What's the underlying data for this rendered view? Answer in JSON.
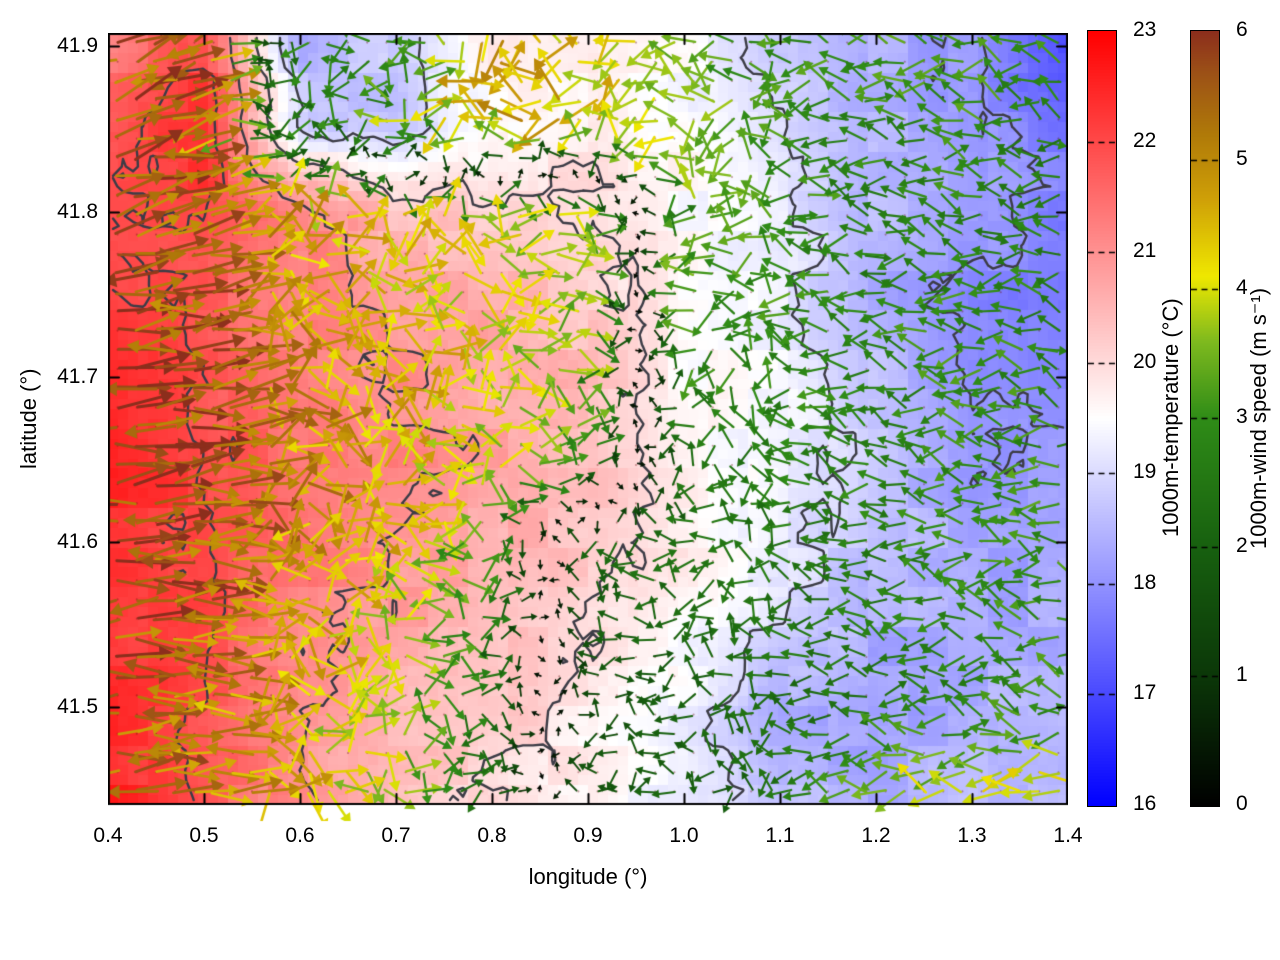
{
  "figure": {
    "background": "#ffffff",
    "frame_color": "#000000"
  },
  "axes": {
    "xlabel": "longitude (°)",
    "ylabel": "latitude (°)",
    "xticks": {
      "values": [
        0.4,
        0.5,
        0.6,
        0.7,
        0.8,
        0.9,
        1.0,
        1.1,
        1.2,
        1.3,
        1.4
      ],
      "labels": [
        "0.4",
        "0.5",
        "0.6",
        "0.7",
        "0.8",
        "0.9",
        "1.0",
        "1.1",
        "1.2",
        "1.3",
        "1.4"
      ]
    },
    "yticks": {
      "values": [
        41.5,
        41.6,
        41.7,
        41.8,
        41.9
      ],
      "labels": [
        "41.5",
        "41.6",
        "41.7",
        "41.8",
        "41.9"
      ]
    }
  },
  "colorbars": {
    "temperature": {
      "title": "1000m-temperature (°C)",
      "min": 16,
      "max": 23,
      "tick_values": [
        16,
        17,
        18,
        19,
        20,
        21,
        22,
        23
      ],
      "tick_labels": [
        "16",
        "17",
        "18",
        "19",
        "20",
        "21",
        "22",
        "23"
      ],
      "stops": [
        [
          16,
          "#0000ff"
        ],
        [
          19.5,
          "#ffffff"
        ],
        [
          23,
          "#ff0000"
        ]
      ]
    },
    "wind": {
      "title": "1000m-wind speed (m s⁻¹)",
      "min": 0,
      "max": 6,
      "tick_values": [
        0,
        1,
        2,
        3,
        4,
        5,
        6
      ],
      "tick_labels": [
        "0",
        "1",
        "2",
        "3",
        "4",
        "5",
        "6"
      ],
      "stops": [
        [
          0,
          "#000000"
        ],
        [
          1,
          "#0b3708"
        ],
        [
          2,
          "#17600f"
        ],
        [
          3,
          "#2f8c17"
        ],
        [
          3.6,
          "#7fba1e"
        ],
        [
          4.1,
          "#efe800"
        ],
        [
          4.7,
          "#cfa007"
        ],
        [
          5.2,
          "#b07a08"
        ],
        [
          5.7,
          "#9b4f17"
        ],
        [
          6,
          "#8c2e1c"
        ]
      ]
    }
  },
  "chart_data": {
    "type": "heatmap",
    "overlays": [
      "contour",
      "quiver"
    ],
    "title": "",
    "xlabel": "longitude (°)",
    "ylabel": "latitude (°)",
    "xlim": [
      0.4,
      1.4
    ],
    "ylim": [
      41.441,
      41.908
    ],
    "grid": false,
    "x_grid_lon": [
      0.4,
      0.5,
      0.6,
      0.7,
      0.8,
      0.9,
      1.0,
      1.1,
      1.2,
      1.3,
      1.4
    ],
    "y_grid_lat": [
      41.9,
      41.85,
      41.8,
      41.75,
      41.7,
      41.65,
      41.6,
      41.55,
      41.5,
      41.45
    ],
    "temperature_c": [
      [
        21.3,
        22.1,
        18.4,
        18.8,
        19.8,
        19.6,
        19.4,
        18.9,
        18.4,
        18.0,
        17.0
      ],
      [
        21.8,
        22.3,
        19.0,
        18.6,
        19.6,
        19.8,
        19.5,
        19.0,
        18.4,
        18.2,
        17.6
      ],
      [
        22.0,
        22.2,
        21.3,
        20.4,
        20.2,
        20.0,
        19.5,
        19.2,
        18.5,
        18.3,
        17.8
      ],
      [
        22.2,
        21.8,
        21.2,
        20.8,
        20.6,
        20.3,
        19.5,
        19.3,
        18.4,
        17.9,
        17.7
      ],
      [
        22.4,
        21.9,
        21.3,
        21.0,
        20.7,
        20.4,
        19.6,
        19.4,
        18.6,
        17.9,
        17.8
      ],
      [
        22.5,
        22.0,
        21.5,
        21.2,
        20.8,
        20.5,
        19.7,
        19.3,
        18.7,
        18.1,
        18.0
      ],
      [
        22.4,
        22.1,
        21.4,
        21.0,
        20.7,
        20.3,
        19.8,
        19.2,
        18.6,
        18.3,
        18.2
      ],
      [
        22.3,
        22.0,
        21.2,
        20.8,
        20.5,
        20.0,
        19.5,
        18.9,
        18.4,
        18.3,
        18.3
      ],
      [
        22.4,
        21.9,
        21.0,
        20.6,
        20.3,
        19.8,
        19.3,
        18.4,
        18.1,
        18.4,
        18.5
      ],
      [
        22.6,
        21.8,
        21.0,
        20.4,
        20.0,
        19.6,
        19.2,
        18.6,
        18.4,
        18.5,
        18.4
      ]
    ],
    "wind_u_ms": [
      [
        5.0,
        5.0,
        -1.5,
        -2.0,
        -4.5,
        -4.0,
        -3.5,
        -3.0,
        -3.0,
        -3.2,
        -2.8
      ],
      [
        5.2,
        5.0,
        -0.5,
        -3.5,
        -4.8,
        -4.5,
        -3.8,
        -3.0,
        -2.8,
        -3.0,
        -2.5
      ],
      [
        5.5,
        5.2,
        4.5,
        4.2,
        4.0,
        3.8,
        -3.4,
        -3.0,
        -2.6,
        -2.8,
        -2.6
      ],
      [
        5.6,
        5.3,
        4.6,
        4.3,
        4.0,
        3.6,
        -3.2,
        -3.0,
        -2.7,
        -2.9,
        -2.7
      ],
      [
        5.8,
        5.4,
        4.8,
        4.4,
        4.1,
        3.4,
        -2.8,
        -2.8,
        -2.8,
        -3.0,
        -2.8
      ],
      [
        5.8,
        5.5,
        4.9,
        4.4,
        4.0,
        3.0,
        -2.2,
        -2.6,
        -2.8,
        -2.9,
        -3.0
      ],
      [
        5.7,
        5.4,
        4.8,
        4.2,
        3.0,
        -2.0,
        -2.3,
        -2.5,
        -2.7,
        -2.9,
        -3.0
      ],
      [
        5.5,
        5.2,
        4.6,
        3.8,
        2.5,
        -1.8,
        -2.2,
        -2.4,
        -2.6,
        -2.8,
        -3.0
      ],
      [
        5.4,
        5.0,
        4.5,
        3.6,
        2.2,
        -1.5,
        -2.0,
        -2.3,
        -2.5,
        -2.7,
        -2.9
      ],
      [
        5.5,
        5.0,
        4.4,
        3.5,
        2.0,
        -1.8,
        -2.0,
        -2.2,
        -3.5,
        -4.0,
        -4.2
      ]
    ],
    "wind_v_ms": [
      [
        2.2,
        2.0,
        -2.5,
        -2.0,
        -1.0,
        -0.8,
        -0.5,
        -0.5,
        0.5,
        0.5,
        0.8
      ],
      [
        1.8,
        1.5,
        -2.8,
        -1.0,
        -0.8,
        -0.5,
        0.0,
        0.3,
        0.5,
        0.5,
        0.5
      ],
      [
        1.2,
        1.0,
        0.5,
        0.0,
        -0.3,
        -0.3,
        0.3,
        0.4,
        0.4,
        0.2,
        0.4
      ],
      [
        1.0,
        0.6,
        0.2,
        0.0,
        0.0,
        -0.2,
        0.3,
        0.5,
        0.5,
        0.3,
        0.3
      ],
      [
        0.8,
        0.5,
        0.2,
        0.0,
        0.0,
        0.0,
        0.3,
        0.4,
        0.3,
        0.3,
        0.5
      ],
      [
        0.5,
        0.3,
        0.2,
        0.1,
        0.0,
        0.2,
        0.4,
        0.5,
        0.4,
        0.4,
        0.4
      ],
      [
        0.3,
        0.2,
        0.0,
        0.0,
        0.2,
        0.3,
        0.3,
        0.3,
        0.3,
        0.5,
        0.5
      ],
      [
        0.2,
        0.0,
        -0.2,
        -0.2,
        0.0,
        0.3,
        0.4,
        0.3,
        0.3,
        0.4,
        0.4
      ],
      [
        0.2,
        0.0,
        -0.2,
        -0.3,
        -0.2,
        0.2,
        0.3,
        0.3,
        0.2,
        0.3,
        0.3
      ],
      [
        0.3,
        0.2,
        0.0,
        -0.2,
        -0.2,
        0.0,
        0.2,
        0.2,
        0.3,
        0.3,
        0.3
      ]
    ],
    "contour_levels": [
      17,
      18,
      19,
      20,
      21,
      22
    ],
    "contour_color": "#3c3c46",
    "temp_range": [
      16,
      23
    ],
    "wind_speed_range": [
      0,
      6
    ]
  }
}
